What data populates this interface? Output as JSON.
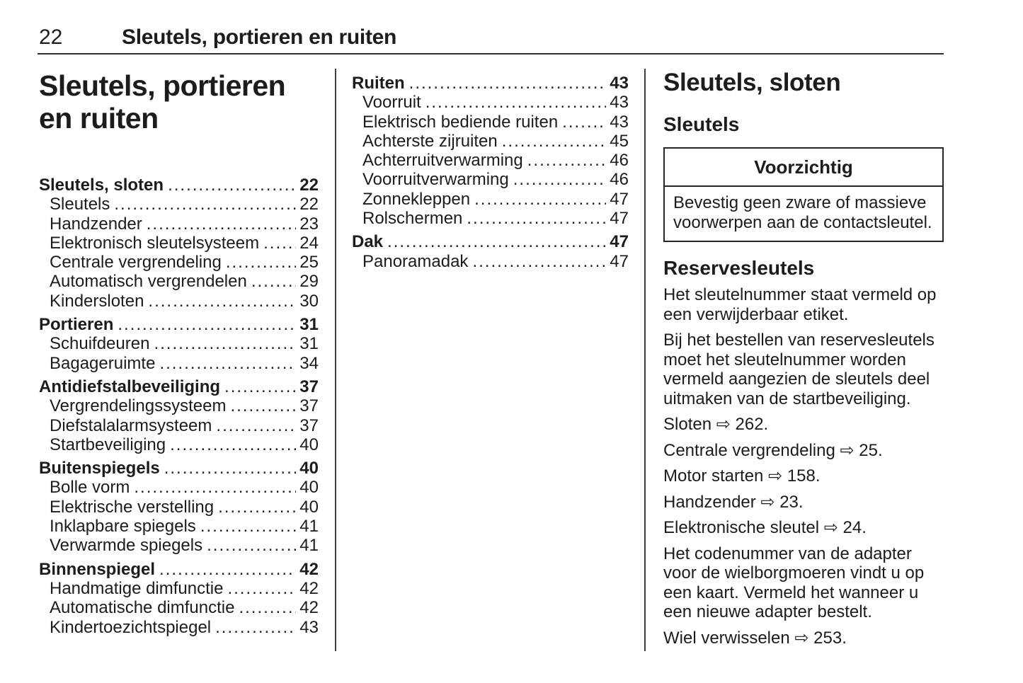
{
  "header": {
    "page_number": "22",
    "chapter_title": "Sleutels, portieren en ruiten"
  },
  "chapter": {
    "title_line1": "Sleutels, portieren",
    "title_line2": "en ruiten"
  },
  "toc_col1": [
    {
      "label": "Sleutels, sloten",
      "page": "22",
      "level": 1
    },
    {
      "label": "Sleutels",
      "page": "22",
      "level": 2
    },
    {
      "label": "Handzender",
      "page": "23",
      "level": 2
    },
    {
      "label": "Elektronisch sleutelsysteem",
      "page": "24",
      "level": 2
    },
    {
      "label": "Centrale vergrendeling",
      "page": "25",
      "level": 2
    },
    {
      "label": "Automatisch vergrendelen",
      "page": "29",
      "level": 2
    },
    {
      "label": "Kindersloten",
      "page": "30",
      "level": 2
    },
    {
      "label": "Portieren",
      "page": "31",
      "level": 1
    },
    {
      "label": "Schuifdeuren",
      "page": "31",
      "level": 2
    },
    {
      "label": "Bagageruimte",
      "page": "34",
      "level": 2
    },
    {
      "label": "Antidiefstalbeveiliging",
      "page": "37",
      "level": 1
    },
    {
      "label": "Vergrendelingssysteem",
      "page": "37",
      "level": 2
    },
    {
      "label": "Diefstalalarmsysteem",
      "page": "37",
      "level": 2
    },
    {
      "label": "Startbeveiliging",
      "page": "40",
      "level": 2
    },
    {
      "label": "Buitenspiegels",
      "page": "40",
      "level": 1
    },
    {
      "label": "Bolle vorm",
      "page": "40",
      "level": 2
    },
    {
      "label": "Elektrische verstelling",
      "page": "40",
      "level": 2
    },
    {
      "label": "Inklapbare spiegels",
      "page": "41",
      "level": 2
    },
    {
      "label": "Verwarmde spiegels",
      "page": "41",
      "level": 2
    },
    {
      "label": "Binnenspiegel",
      "page": "42",
      "level": 1
    },
    {
      "label": "Handmatige dimfunctie",
      "page": "42",
      "level": 2
    },
    {
      "label": "Automatische dimfunctie",
      "page": "42",
      "level": 2
    },
    {
      "label": "Kindertoezichtspiegel",
      "page": "43",
      "level": 2
    }
  ],
  "toc_col2": [
    {
      "label": "Ruiten",
      "page": "43",
      "level": 1
    },
    {
      "label": "Voorruit",
      "page": "43",
      "level": 2
    },
    {
      "label": "Elektrisch bediende ruiten",
      "page": "43",
      "level": 2
    },
    {
      "label": "Achterste zijruiten",
      "page": "45",
      "level": 2
    },
    {
      "label": "Achterruitverwarming",
      "page": "46",
      "level": 2
    },
    {
      "label": "Voorruitverwarming",
      "page": "46",
      "level": 2
    },
    {
      "label": "Zonnekleppen",
      "page": "47",
      "level": 2
    },
    {
      "label": "Rolschermen",
      "page": "47",
      "level": 2
    },
    {
      "label": "Dak",
      "page": "47",
      "level": 1
    },
    {
      "label": "Panoramadak",
      "page": "47",
      "level": 2
    }
  ],
  "section": {
    "heading": "Sleutels, sloten",
    "subheading": "Sleutels",
    "caution": {
      "title": "Voorzichtig",
      "body": "Bevestig geen zware of massieve voorwerpen aan de contactsleutel."
    },
    "subsection_heading": "Reservesleutels",
    "paragraphs": [
      "Het sleutelnummer staat vermeld op een verwijderbaar etiket.",
      "Bij het bestellen van reservesleutels moet het sleutelnummer worden vermeld aangezien de sleutels deel uitmaken van de startbeveiliging.",
      "Sloten ⇨ 262.",
      "Centrale vergrendeling ⇨ 25.",
      "Motor starten ⇨ 158.",
      "Handzender ⇨ 23.",
      "Elektronische sleutel ⇨ 24.",
      "Het codenummer van de adapter voor de wielborgmoeren vindt u op een kaart. Vermeld het wanneer u een nieuwe adapter bestelt.",
      "Wiel verwisselen ⇨ 253."
    ]
  },
  "colors": {
    "text": "#1c1c1c",
    "background": "#ffffff",
    "rule": "#2e2e2e"
  }
}
